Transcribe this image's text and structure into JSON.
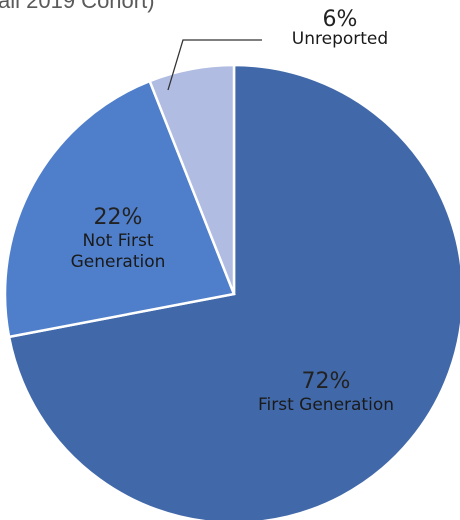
{
  "chart_data": {
    "type": "pie",
    "title_fragment": "all 2019 Cohort)",
    "slices": [
      {
        "label_lines": [
          "First Generation"
        ],
        "value": 72,
        "display": "72%",
        "color": "#4169aa"
      },
      {
        "label_lines": [
          "Not First",
          "Generation"
        ],
        "value": 22,
        "display": "22%",
        "color": "#4f7fca"
      },
      {
        "label_lines": [
          "Unreported"
        ],
        "value": 6,
        "display": "6%",
        "color": "#b0bce2"
      }
    ],
    "start_angle_deg": 0,
    "direction": "clockwise",
    "slice_border_color": "#ffffff",
    "legend": "none"
  }
}
